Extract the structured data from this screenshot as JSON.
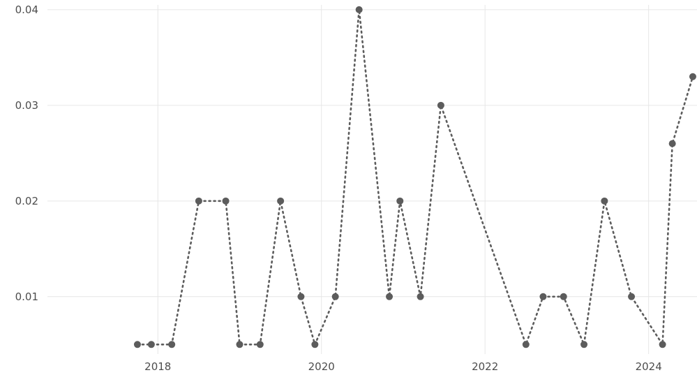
{
  "chart_data": {
    "type": "line",
    "title": "",
    "xlabel": "",
    "ylabel": "",
    "grid": true,
    "xlim": [
      2016.65,
      2024.6
    ],
    "ylim": [
      0.004,
      0.0405
    ],
    "x_ticks": [
      "2018",
      "2020",
      "2022",
      "2024"
    ],
    "x_tick_values": [
      2018,
      2020,
      2022,
      2024
    ],
    "y_ticks": [
      "0.01",
      "0.02",
      "0.03",
      "0.04"
    ],
    "y_tick_values": [
      0.01,
      0.02,
      0.03,
      0.04
    ],
    "series": [
      {
        "color": "#5c5c5c",
        "points": [
          {
            "x": 2017.75,
            "y": 0.005
          },
          {
            "x": 2017.92,
            "y": 0.005
          },
          {
            "x": 2018.17,
            "y": 0.005
          },
          {
            "x": 2018.5,
            "y": 0.02
          },
          {
            "x": 2018.83,
            "y": 0.02
          },
          {
            "x": 2019.0,
            "y": 0.005
          },
          {
            "x": 2019.25,
            "y": 0.005
          },
          {
            "x": 2019.5,
            "y": 0.02
          },
          {
            "x": 2019.75,
            "y": 0.01
          },
          {
            "x": 2019.92,
            "y": 0.005
          },
          {
            "x": 2020.17,
            "y": 0.01
          },
          {
            "x": 2020.46,
            "y": 0.04
          },
          {
            "x": 2020.83,
            "y": 0.01
          },
          {
            "x": 2020.96,
            "y": 0.02
          },
          {
            "x": 2021.21,
            "y": 0.01
          },
          {
            "x": 2021.46,
            "y": 0.03
          },
          {
            "x": 2022.5,
            "y": 0.005
          },
          {
            "x": 2022.71,
            "y": 0.01
          },
          {
            "x": 2022.96,
            "y": 0.01
          },
          {
            "x": 2023.21,
            "y": 0.005
          },
          {
            "x": 2023.46,
            "y": 0.02
          },
          {
            "x": 2023.79,
            "y": 0.01
          },
          {
            "x": 2024.17,
            "y": 0.005
          },
          {
            "x": 2024.29,
            "y": 0.026
          },
          {
            "x": 2024.54,
            "y": 0.033
          }
        ]
      }
    ]
  }
}
